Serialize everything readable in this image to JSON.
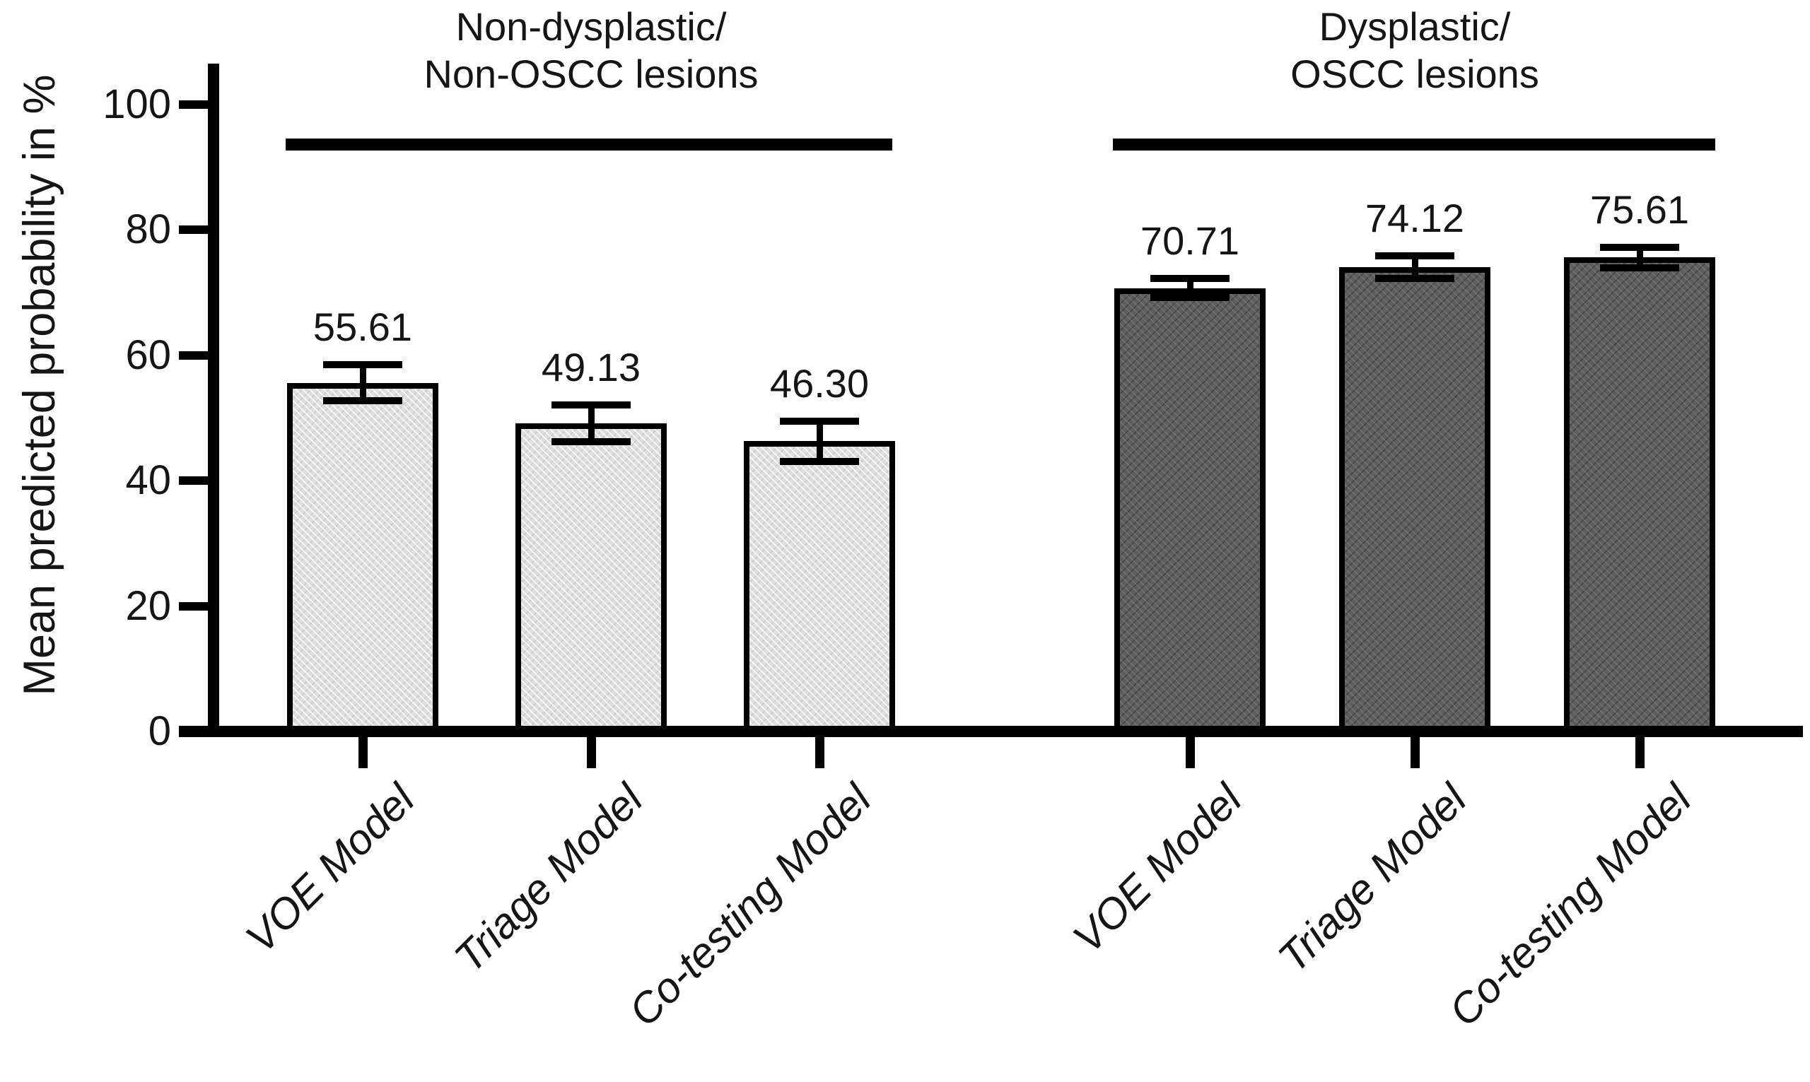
{
  "chart_data": {
    "type": "bar",
    "title": "",
    "ylabel": "Mean predicted probability in %",
    "xlabel": "",
    "ylim": [
      0,
      100
    ],
    "yticks": [
      0,
      20,
      40,
      60,
      80,
      100
    ],
    "grid": "off",
    "legend": "none",
    "categories": [
      "VOE Model",
      "Triage Model",
      "Co-testing Model"
    ],
    "groups": [
      {
        "label_line1": "Non-dysplastic/",
        "label_line2": "Non-OSCC lesions",
        "bar_color": "#dedede",
        "values": [
          55.61,
          49.13,
          46.3
        ],
        "value_labels": [
          "55.61",
          "49.13",
          "46.30"
        ],
        "errors": [
          2.9,
          2.9,
          3.2
        ]
      },
      {
        "label_line1": "Dysplastic/",
        "label_line2": "OSCC lesions",
        "bar_color": "#5e5e5e",
        "values": [
          70.71,
          74.12,
          75.61
        ],
        "value_labels": [
          "70.71",
          "74.12",
          "75.61"
        ],
        "errors": [
          1.5,
          1.8,
          1.6
        ]
      }
    ],
    "axis_color": "#000000",
    "text_color": "#151515"
  }
}
